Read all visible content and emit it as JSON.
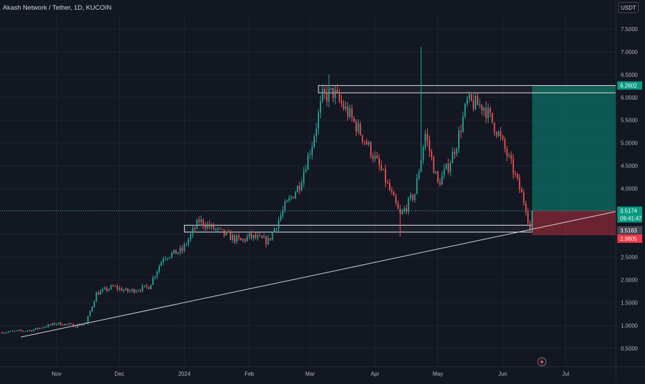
{
  "header": {
    "title": "Akash Network / Tether, 1D, KUCOIN"
  },
  "axis": {
    "currency": "USDT"
  },
  "colors": {
    "up": "#26a69a",
    "down": "#ef5350",
    "background": "#131722",
    "grid": "#1f2330",
    "line": "#d1d4dc"
  },
  "chart_data": {
    "type": "candlestick",
    "title": "Akash Network / Tether, 1D, KUCOIN",
    "currency": "USDT",
    "ylim": [
      0.1,
      7.8
    ],
    "x_range": [
      "2023-10-05",
      "2024-07-25"
    ],
    "y_ticks": [
      "0.5000",
      "1.0000",
      "1.5000",
      "2.0000",
      "2.5000",
      "3.0000",
      "3.5000",
      "4.0000",
      "4.5000",
      "5.0000",
      "5.5000",
      "6.0000",
      "6.5000",
      "7.0000",
      "7.5000"
    ],
    "x_ticks": [
      {
        "label": "Nov",
        "date": "2023-11-01"
      },
      {
        "label": "Dec",
        "date": "2023-12-01"
      },
      {
        "label": "2024",
        "date": "2024-01-01"
      },
      {
        "label": "Feb",
        "date": "2024-02-01"
      },
      {
        "label": "Mar",
        "date": "2024-03-01"
      },
      {
        "label": "Apr",
        "date": "2024-04-01"
      },
      {
        "label": "May",
        "date": "2024-05-01"
      },
      {
        "label": "Jun",
        "date": "2024-06-01"
      },
      {
        "label": "Jul",
        "date": "2024-07-01"
      }
    ],
    "price_path": [
      [
        "2023-10-05",
        0.85
      ],
      [
        "2023-10-20",
        0.9
      ],
      [
        "2023-11-01",
        1.05
      ],
      [
        "2023-11-10",
        1.0
      ],
      [
        "2023-11-15",
        1.05
      ],
      [
        "2023-11-20",
        1.7
      ],
      [
        "2023-11-28",
        1.85
      ],
      [
        "2023-12-05",
        1.75
      ],
      [
        "2023-12-15",
        1.85
      ],
      [
        "2023-12-22",
        2.5
      ],
      [
        "2023-12-31",
        2.65
      ],
      [
        "2024-01-08",
        3.3
      ],
      [
        "2024-01-20",
        3.0
      ],
      [
        "2024-01-28",
        2.85
      ],
      [
        "2024-02-01",
        2.95
      ],
      [
        "2024-02-10",
        2.85
      ],
      [
        "2024-02-18",
        3.6
      ],
      [
        "2024-02-25",
        4.1
      ],
      [
        "2024-03-02",
        5.0
      ],
      [
        "2024-03-07",
        6.0
      ],
      [
        "2024-03-12",
        6.1
      ],
      [
        "2024-03-20",
        5.6
      ],
      [
        "2024-03-28",
        5.0
      ],
      [
        "2024-04-05",
        4.3
      ],
      [
        "2024-04-13",
        3.4
      ],
      [
        "2024-04-20",
        3.9
      ],
      [
        "2024-04-25",
        5.2
      ],
      [
        "2024-05-01",
        4.1
      ],
      [
        "2024-05-06",
        4.5
      ],
      [
        "2024-05-10",
        5.0
      ],
      [
        "2024-05-15",
        5.9
      ],
      [
        "2024-05-23",
        5.8
      ],
      [
        "2024-05-30",
        5.2
      ],
      [
        "2024-06-06",
        4.4
      ],
      [
        "2024-06-12",
        3.6
      ],
      [
        "2024-06-14",
        3.1
      ],
      [
        "2024-06-15",
        3.517
      ]
    ],
    "spikes": [
      [
        "2024-03-10",
        6.5
      ],
      [
        "2024-04-23",
        7.1
      ],
      [
        "2024-04-13",
        2.95
      ]
    ],
    "zones": [
      {
        "label": "resistance",
        "from": "2024-03-05",
        "to": "2024-07-25",
        "low": 6.1,
        "high": 6.26
      },
      {
        "label": "support",
        "from": "2024-01-01",
        "to": "2024-06-15",
        "low": 3.05,
        "high": 3.2
      }
    ],
    "trendline": {
      "from": [
        "2023-10-15",
        0.75
      ],
      "to": [
        "2024-07-25",
        3.5
      ]
    },
    "position": {
      "start": "2024-06-15",
      "end": "2024-07-25",
      "entry": 3.5174,
      "target": 6.2602,
      "stop": 2.9805
    },
    "price_labels": {
      "target": "6.2602",
      "current": "3.5174",
      "countdown": "09:41:47",
      "support": "3.5163",
      "stop": "2.9805"
    }
  }
}
